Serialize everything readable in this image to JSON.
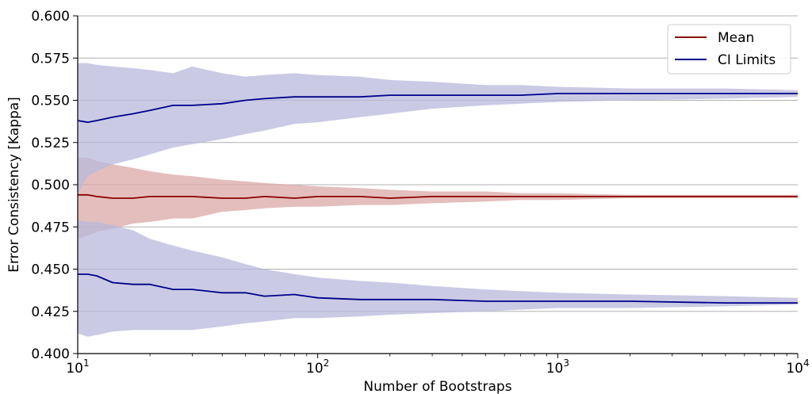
{
  "chart_data": {
    "type": "line",
    "title": "",
    "xlabel": "Number of Bootstraps",
    "ylabel": "Error Consistency [Kappa]",
    "xscale": "log",
    "xlim": [
      10,
      10000
    ],
    "ylim": [
      0.4,
      0.6
    ],
    "grid": "horizontal",
    "legend_position": "top-right",
    "x_ticks": [
      {
        "value": 10,
        "base": "10",
        "exp": "1"
      },
      {
        "value": 100,
        "base": "10",
        "exp": "2"
      },
      {
        "value": 1000,
        "base": "10",
        "exp": "3"
      },
      {
        "value": 10000,
        "base": "10",
        "exp": "4"
      }
    ],
    "y_ticks": [
      {
        "value": 0.4,
        "label": "0.400"
      },
      {
        "value": 0.425,
        "label": "0.425"
      },
      {
        "value": 0.45,
        "label": "0.450"
      },
      {
        "value": 0.475,
        "label": "0.475"
      },
      {
        "value": 0.5,
        "label": "0.500"
      },
      {
        "value": 0.525,
        "label": "0.525"
      },
      {
        "value": 0.55,
        "label": "0.550"
      },
      {
        "value": 0.575,
        "label": "0.575"
      },
      {
        "value": 0.6,
        "label": "0.600"
      }
    ],
    "series": [
      {
        "name": "Mean",
        "color": "#8b0000",
        "band_color": "#d9a8a6",
        "x": [
          10,
          11,
          12,
          14,
          17,
          20,
          25,
          30,
          40,
          50,
          60,
          80,
          100,
          150,
          200,
          300,
          500,
          700,
          1000,
          2000,
          5000,
          10000
        ],
        "y": [
          0.494,
          0.494,
          0.493,
          0.492,
          0.492,
          0.493,
          0.493,
          0.493,
          0.492,
          0.492,
          0.493,
          0.492,
          0.493,
          0.493,
          0.492,
          0.493,
          0.493,
          0.493,
          0.493,
          0.493,
          0.493,
          0.493
        ],
        "band_lower": [
          0.468,
          0.47,
          0.472,
          0.474,
          0.477,
          0.478,
          0.48,
          0.48,
          0.484,
          0.485,
          0.486,
          0.487,
          0.487,
          0.488,
          0.488,
          0.489,
          0.49,
          0.491,
          0.491,
          0.492,
          0.492,
          0.492
        ],
        "band_upper": [
          0.516,
          0.516,
          0.514,
          0.512,
          0.51,
          0.508,
          0.506,
          0.505,
          0.503,
          0.502,
          0.501,
          0.5,
          0.499,
          0.498,
          0.497,
          0.496,
          0.496,
          0.495,
          0.495,
          0.494,
          0.494,
          0.494
        ]
      },
      {
        "name": "CI Limits",
        "color": "#00008b",
        "band_color": "#b8b8dc",
        "x": [
          10,
          11,
          12,
          14,
          17,
          20,
          25,
          30,
          40,
          50,
          60,
          80,
          100,
          150,
          200,
          300,
          500,
          700,
          1000,
          2000,
          5000,
          10000
        ],
        "y": [
          0.538,
          0.537,
          0.538,
          0.54,
          0.542,
          0.544,
          0.547,
          0.547,
          0.548,
          0.55,
          0.551,
          0.552,
          0.552,
          0.552,
          0.553,
          0.553,
          0.553,
          0.553,
          0.554,
          0.554,
          0.554,
          0.554
        ],
        "band_lower": [
          0.495,
          0.505,
          0.508,
          0.512,
          0.515,
          0.518,
          0.522,
          0.524,
          0.527,
          0.53,
          0.532,
          0.536,
          0.537,
          0.54,
          0.542,
          0.545,
          0.547,
          0.548,
          0.549,
          0.55,
          0.551,
          0.552
        ],
        "band_upper": [
          0.572,
          0.572,
          0.571,
          0.57,
          0.569,
          0.568,
          0.566,
          0.57,
          0.566,
          0.564,
          0.565,
          0.566,
          0.565,
          0.564,
          0.562,
          0.561,
          0.559,
          0.559,
          0.558,
          0.557,
          0.557,
          0.556
        ]
      },
      {
        "name": "",
        "color": "#00008b",
        "band_color": "#b8b8dc",
        "x": [
          10,
          11,
          12,
          14,
          17,
          20,
          25,
          30,
          40,
          50,
          60,
          80,
          100,
          150,
          200,
          300,
          500,
          700,
          1000,
          2000,
          5000,
          10000
        ],
        "y": [
          0.447,
          0.447,
          0.446,
          0.442,
          0.441,
          0.441,
          0.438,
          0.438,
          0.436,
          0.436,
          0.434,
          0.435,
          0.433,
          0.432,
          0.432,
          0.432,
          0.431,
          0.431,
          0.431,
          0.431,
          0.43,
          0.43
        ],
        "band_lower": [
          0.412,
          0.41,
          0.411,
          0.413,
          0.414,
          0.414,
          0.414,
          0.414,
          0.416,
          0.418,
          0.419,
          0.421,
          0.421,
          0.422,
          0.423,
          0.424,
          0.425,
          0.426,
          0.427,
          0.427,
          0.428,
          0.429
        ],
        "band_upper": [
          0.479,
          0.478,
          0.478,
          0.476,
          0.473,
          0.468,
          0.464,
          0.461,
          0.457,
          0.453,
          0.45,
          0.447,
          0.445,
          0.443,
          0.442,
          0.44,
          0.438,
          0.437,
          0.436,
          0.435,
          0.434,
          0.433
        ]
      }
    ]
  }
}
